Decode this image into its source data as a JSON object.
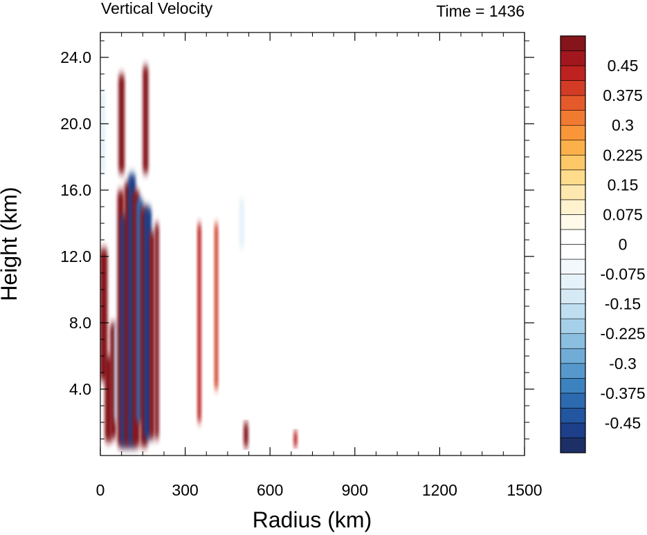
{
  "chart_data": {
    "type": "heatmap",
    "title": "Vertical Velocity",
    "time_label": "Time = 1436",
    "xlabel": "Radius (km)",
    "ylabel": "Height (km)",
    "xlim": [
      0,
      1500
    ],
    "ylim": [
      0,
      25.5
    ],
    "x_ticks": [
      0,
      300,
      600,
      900,
      1200,
      1500
    ],
    "x_tick_labels": [
      "0",
      "300",
      "600",
      "900",
      "1200",
      "1500"
    ],
    "y_ticks": [
      4,
      8,
      12,
      16,
      20,
      24
    ],
    "y_tick_labels": [
      "4.0",
      "8.0",
      "12.0",
      "16.0",
      "20.0",
      "24.0"
    ],
    "colorbar": {
      "min": -0.525,
      "max": 0.525,
      "step": 0.025,
      "tick_values": [
        0.45,
        0.375,
        0.3,
        0.225,
        0.15,
        0.075,
        0,
        -0.075,
        -0.15,
        -0.225,
        -0.3,
        -0.375,
        -0.45
      ],
      "tick_labels": [
        "0.45",
        "0.375",
        "0.3",
        "0.225",
        "0.15",
        "0.075",
        "0",
        "-0.075",
        "-0.15",
        "-0.225",
        "-0.3",
        "-0.375",
        "-0.45"
      ],
      "colors": [
        "#1c2f66",
        "#1d3f8a",
        "#2356a0",
        "#2d6bb0",
        "#3c82bf",
        "#5698cc",
        "#71acd7",
        "#8bbfe0",
        "#a6d0e9",
        "#bfdff0",
        "#d5eaf5",
        "#e6f2f9",
        "#f2f8fc",
        "#ffffff",
        "#ffffff",
        "#fffaea",
        "#fff2cf",
        "#ffe8b0",
        "#ffdb8c",
        "#fdc867",
        "#fcb04a",
        "#f9963a",
        "#f07a30",
        "#e45a2a",
        "#d23c25",
        "#bd2221",
        "#a2171e",
        "#85141b"
      ]
    },
    "features": [
      {
        "r": 12,
        "z0": 4.5,
        "z1": 12.5,
        "value": 0.5
      },
      {
        "r": 28,
        "z0": 0.8,
        "z1": 6.0,
        "value": 0.45
      },
      {
        "r": 45,
        "z0": 1.0,
        "z1": 8.0,
        "value": 0.35
      },
      {
        "r": 60,
        "z0": 2.0,
        "z1": 8.0,
        "value": -0.3
      },
      {
        "r": 72,
        "z0": 0.5,
        "z1": 16.0,
        "value": 0.4
      },
      {
        "r": 85,
        "z0": 0.5,
        "z1": 14.5,
        "value": -0.5
      },
      {
        "r": 98,
        "z0": 0.5,
        "z1": 16.5,
        "value": 0.5
      },
      {
        "r": 112,
        "z0": 0.5,
        "z1": 17.0,
        "value": -0.5
      },
      {
        "r": 126,
        "z0": 0.5,
        "z1": 16.0,
        "value": 0.5
      },
      {
        "r": 140,
        "z0": 2.0,
        "z1": 15.5,
        "value": -0.45
      },
      {
        "r": 155,
        "z0": 0.5,
        "z1": 15.0,
        "value": 0.5
      },
      {
        "r": 168,
        "z0": 1.0,
        "z1": 15.0,
        "value": -0.5
      },
      {
        "r": 182,
        "z0": 1.0,
        "z1": 13.5,
        "value": 0.25
      },
      {
        "r": 200,
        "z0": 1.0,
        "z1": 14.0,
        "value": 0.15
      },
      {
        "r": 8,
        "z0": 17.0,
        "z1": 22.0,
        "value": -0.25
      },
      {
        "r": 75,
        "z0": 17.0,
        "z1": 23.0,
        "value": 0.35
      },
      {
        "r": 160,
        "z0": 17.0,
        "z1": 23.5,
        "value": 0.3
      },
      {
        "r": 350,
        "z0": 2.0,
        "z1": 14.0,
        "value": 0.1
      },
      {
        "r": 410,
        "z0": 4.0,
        "z1": 14.0,
        "value": 0.08
      },
      {
        "r": 500,
        "z0": 12.5,
        "z1": 15.5,
        "value": -0.25
      },
      {
        "r": 515,
        "z0": 0.5,
        "z1": 2.0,
        "value": 0.2
      },
      {
        "r": 690,
        "z0": 0.5,
        "z1": 1.5,
        "value": 0.1
      }
    ]
  }
}
